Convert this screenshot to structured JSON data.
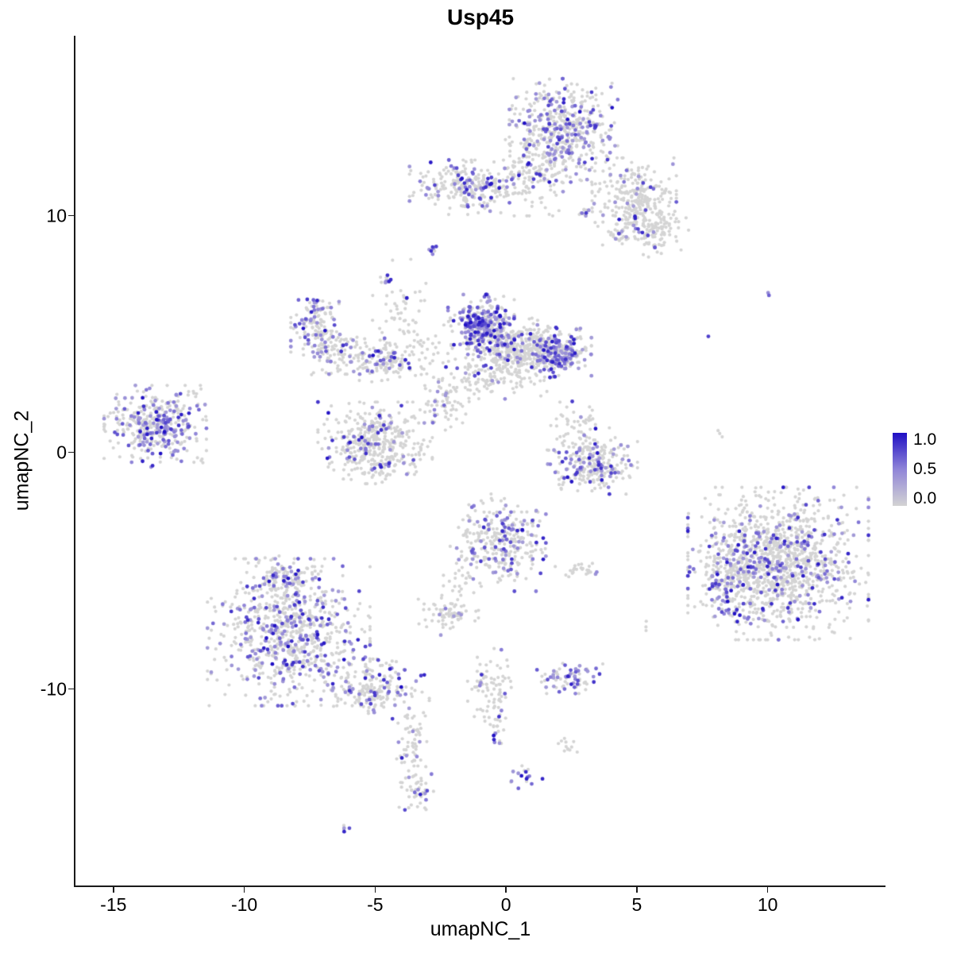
{
  "legend": {
    "labels": [
      "1.0",
      "0.5",
      "0.0"
    ]
  },
  "chart_data": {
    "type": "scatter",
    "title": "Usp45",
    "xlabel": "umapNC_1",
    "ylabel": "umapNC_2",
    "xlim": [
      -16.45,
      14.5
    ],
    "ylim": [
      -18.3,
      17.6
    ],
    "x_ticks": [
      -15,
      -10,
      -5,
      0,
      5,
      10
    ],
    "y_ticks": [
      10,
      0,
      -10
    ],
    "grid": false,
    "legend_position": "right",
    "colorbar": {
      "labels": [
        1.0,
        0.5,
        0.0
      ],
      "low": "#d3d3d3",
      "mid": "#9085d8",
      "high": "#1f0fc4"
    },
    "point_color_base": "#d4d4d4",
    "clusters": [
      {
        "cx": 2.2,
        "cy": 13.6,
        "rx": 0.9,
        "ry": 0.95,
        "n": 520,
        "expr": 0.28
      },
      {
        "cx": 4.9,
        "cy": 10.6,
        "rx": 0.7,
        "ry": 0.8,
        "n": 280,
        "expr": 0.12
      },
      {
        "cx": 5.6,
        "cy": 9.4,
        "rx": 0.6,
        "ry": 0.5,
        "n": 110,
        "expr": 0.1
      },
      {
        "cx": -1.5,
        "cy": 11.2,
        "rx": 0.95,
        "ry": 0.5,
        "n": 260,
        "expr": 0.22
      },
      {
        "cx": 0.8,
        "cy": 11.6,
        "rx": 0.6,
        "ry": 0.7,
        "n": 120,
        "expr": 0.12
      },
      {
        "cx": 3.05,
        "cy": 10.1,
        "rx": 0.12,
        "ry": 0.12,
        "n": 14,
        "expr": 0.35
      },
      {
        "cx": 4.25,
        "cy": 9.15,
        "rx": 0.15,
        "ry": 0.12,
        "n": 16,
        "expr": 0.1
      },
      {
        "cx": -2.85,
        "cy": 8.6,
        "rx": 0.08,
        "ry": 0.1,
        "n": 10,
        "expr": 0.6
      },
      {
        "cx": -4.55,
        "cy": 7.3,
        "rx": 0.1,
        "ry": 0.12,
        "n": 10,
        "expr": 0.5
      },
      {
        "cx": -0.95,
        "cy": 5.4,
        "rx": 0.55,
        "ry": 0.55,
        "n": 330,
        "expr": 0.5
      },
      {
        "cx": 0.3,
        "cy": 4.4,
        "rx": 0.75,
        "ry": 0.55,
        "n": 380,
        "expr": 0.12
      },
      {
        "cx": 2.0,
        "cy": 4.2,
        "rx": 0.55,
        "ry": 0.45,
        "n": 260,
        "expr": 0.4
      },
      {
        "cx": -0.6,
        "cy": 3.1,
        "rx": 1.0,
        "ry": 0.45,
        "n": 100,
        "expr": 0.1
      },
      {
        "cx": -7.3,
        "cy": 5.5,
        "rx": 0.4,
        "ry": 0.55,
        "n": 130,
        "expr": 0.3
      },
      {
        "cx": -6.6,
        "cy": 4.2,
        "rx": 0.5,
        "ry": 0.4,
        "n": 100,
        "expr": 0.2
      },
      {
        "cx": -4.7,
        "cy": 3.9,
        "rx": 0.65,
        "ry": 0.4,
        "n": 140,
        "expr": 0.18
      },
      {
        "cx": -4.0,
        "cy": 6.2,
        "rx": 0.5,
        "ry": 0.85,
        "n": 50,
        "expr": 0.05
      },
      {
        "cx": -2.8,
        "cy": 4.3,
        "rx": 0.7,
        "ry": 0.6,
        "n": 45,
        "expr": 0.1
      },
      {
        "cx": -13.4,
        "cy": 1.1,
        "rx": 0.85,
        "ry": 0.75,
        "n": 380,
        "expr": 0.38
      },
      {
        "cx": -11.9,
        "cy": 2.5,
        "rx": 0.15,
        "ry": 0.15,
        "n": 6,
        "expr": 0.0
      },
      {
        "cx": -11.7,
        "cy": -0.3,
        "rx": 0.15,
        "ry": 0.1,
        "n": 5,
        "expr": 0.0
      },
      {
        "cx": -5.0,
        "cy": 0.4,
        "rx": 0.95,
        "ry": 0.75,
        "n": 430,
        "expr": 0.12
      },
      {
        "cx": -2.4,
        "cy": 2.2,
        "rx": 0.45,
        "ry": 0.55,
        "n": 70,
        "expr": 0.15
      },
      {
        "cx": 3.3,
        "cy": -0.5,
        "rx": 0.75,
        "ry": 0.55,
        "n": 260,
        "expr": 0.22
      },
      {
        "cx": 2.8,
        "cy": 1.0,
        "rx": 0.5,
        "ry": 0.5,
        "n": 50,
        "expr": 0.1
      },
      {
        "cx": -0.2,
        "cy": -3.8,
        "rx": 0.75,
        "ry": 0.9,
        "n": 320,
        "expr": 0.3
      },
      {
        "cx": 2.8,
        "cy": -4.9,
        "rx": 0.45,
        "ry": 0.18,
        "n": 25,
        "expr": 0.1
      },
      {
        "cx": -2.2,
        "cy": -6.8,
        "rx": 0.5,
        "ry": 0.4,
        "n": 70,
        "expr": 0.12
      },
      {
        "cx": -1.7,
        "cy": -5.3,
        "rx": 0.3,
        "ry": 0.6,
        "n": 20,
        "expr": 0.0
      },
      {
        "cx": -8.3,
        "cy": -7.6,
        "rx": 1.35,
        "ry": 1.35,
        "n": 800,
        "expr": 0.28
      },
      {
        "cx": -8.6,
        "cy": -5.3,
        "rx": 0.6,
        "ry": 0.4,
        "n": 90,
        "expr": 0.15
      },
      {
        "cx": -5.0,
        "cy": -10.0,
        "rx": 0.9,
        "ry": 0.55,
        "n": 200,
        "expr": 0.3
      },
      {
        "cx": -3.6,
        "cy": -12.2,
        "rx": 0.25,
        "ry": 0.9,
        "n": 60,
        "expr": 0.12
      },
      {
        "cx": -3.45,
        "cy": -14.4,
        "rx": 0.3,
        "ry": 0.5,
        "n": 45,
        "expr": 0.18
      },
      {
        "cx": -6.1,
        "cy": -15.9,
        "rx": 0.08,
        "ry": 0.08,
        "n": 5,
        "expr": 0.5
      },
      {
        "cx": -0.6,
        "cy": -9.9,
        "rx": 0.4,
        "ry": 0.7,
        "n": 80,
        "expr": 0.12
      },
      {
        "cx": -0.25,
        "cy": -11.6,
        "rx": 0.2,
        "ry": 0.35,
        "n": 20,
        "expr": 0.35
      },
      {
        "cx": 2.45,
        "cy": -9.5,
        "rx": 0.55,
        "ry": 0.3,
        "n": 70,
        "expr": 0.55
      },
      {
        "cx": 0.75,
        "cy": -13.8,
        "rx": 0.28,
        "ry": 0.28,
        "n": 16,
        "expr": 0.45
      },
      {
        "cx": 2.3,
        "cy": -12.3,
        "rx": 0.22,
        "ry": 0.22,
        "n": 12,
        "expr": 0.1
      },
      {
        "cx": 10.4,
        "cy": -4.7,
        "rx": 1.5,
        "ry": 1.4,
        "n": 1200,
        "expr": 0.17
      },
      {
        "cx": 8.6,
        "cy": -5.2,
        "rx": 0.5,
        "ry": 0.9,
        "n": 150,
        "expr": 0.3
      },
      {
        "cx": 10.0,
        "cy": 6.7,
        "rx": 0.06,
        "ry": 0.06,
        "n": 2,
        "expr": 0.95
      },
      {
        "cx": 7.7,
        "cy": 4.9,
        "rx": 0.05,
        "ry": 0.05,
        "n": 1,
        "expr": 0.95
      },
      {
        "cx": 8.2,
        "cy": 0.8,
        "rx": 0.1,
        "ry": 0.1,
        "n": 3,
        "expr": 0.0
      },
      {
        "cx": 5.3,
        "cy": -7.3,
        "rx": 0.12,
        "ry": 0.1,
        "n": 3,
        "expr": 0.0
      }
    ]
  }
}
